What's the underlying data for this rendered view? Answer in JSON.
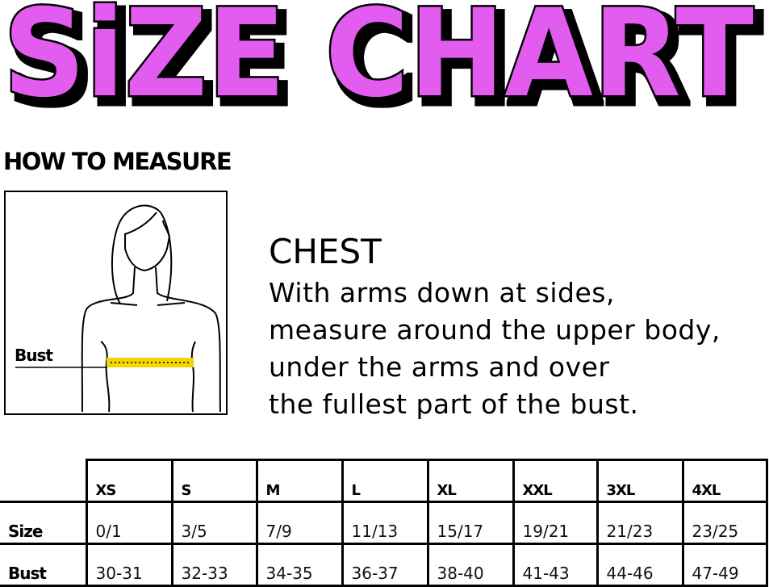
{
  "title": {
    "text": "SiZE CHART",
    "fill": "#e35cf0",
    "outline": "#000000"
  },
  "how_to_measure": {
    "heading": "HOW TO MEASURE",
    "figure_label": "Bust",
    "tape_color": "#f2d600"
  },
  "chest": {
    "heading": "CHEST",
    "lines": [
      "With arms down at sides,",
      "measure around the upper body,",
      "under the arms and over",
      "the fullest part of the bust."
    ]
  },
  "table": {
    "sizes": [
      "XS",
      "S",
      "M",
      "L",
      "XL",
      "XXL",
      "3XL",
      "4XL"
    ],
    "rows": [
      {
        "label": "Size",
        "values": [
          "0/1",
          "3/5",
          "7/9",
          "11/13",
          "15/17",
          "19/21",
          "21/23",
          "23/25"
        ]
      },
      {
        "label": "Bust",
        "values": [
          "30-31",
          "32-33",
          "34-35",
          "36-37",
          "38-40",
          "41-43",
          "44-46",
          "47-49"
        ]
      }
    ]
  }
}
